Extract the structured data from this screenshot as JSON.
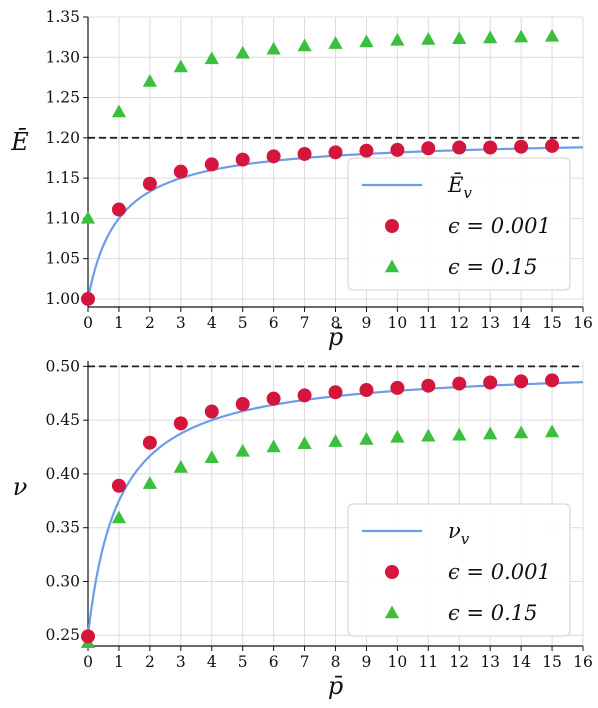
{
  "chart_data": [
    {
      "type": "scatter",
      "ylabel": "Ē",
      "xlabel": "p̄",
      "xlim": [
        0,
        16
      ],
      "ylim": [
        0.99,
        1.35
      ],
      "xticks": [
        "0",
        "1",
        "2",
        "3",
        "4",
        "5",
        "6",
        "7",
        "8",
        "9",
        "10",
        "11",
        "12",
        "13",
        "14",
        "15",
        "16"
      ],
      "yticks": [
        "1.00",
        "1.05",
        "1.10",
        "1.15",
        "1.20",
        "1.25",
        "1.30",
        "1.35"
      ],
      "grid": true,
      "legend_position": "lower-right",
      "reference_line": {
        "y": 1.2,
        "style": "dashed"
      },
      "curve": {
        "name": "Ē",
        "subscript": "v",
        "color": "#6f9be8",
        "formula": "1.2 - 0.2/(1+p)"
      },
      "series": [
        {
          "name": "ϵ = 0.001",
          "marker": "circle",
          "color": "#d4163c",
          "x": [
            0,
            1,
            2,
            3,
            4,
            5,
            6,
            7,
            8,
            9,
            10,
            11,
            12,
            13,
            14,
            15
          ],
          "y": [
            1.0,
            1.111,
            1.143,
            1.158,
            1.167,
            1.173,
            1.177,
            1.18,
            1.182,
            1.184,
            1.185,
            1.187,
            1.188,
            1.188,
            1.189,
            1.19
          ]
        },
        {
          "name": "ϵ = 0.15",
          "marker": "triangle",
          "color": "#3cbf3c",
          "x": [
            0,
            1,
            2,
            3,
            4,
            5,
            6,
            7,
            8,
            9,
            10,
            11,
            12,
            13,
            14,
            15
          ],
          "y": [
            1.1,
            1.232,
            1.27,
            1.288,
            1.298,
            1.305,
            1.31,
            1.314,
            1.317,
            1.319,
            1.321,
            1.322,
            1.323,
            1.324,
            1.325,
            1.326
          ]
        }
      ]
    },
    {
      "type": "scatter",
      "ylabel": "ν",
      "xlabel": "p̄",
      "xlim": [
        0,
        16
      ],
      "ylim": [
        0.24,
        0.505
      ],
      "xticks": [
        "0",
        "1",
        "2",
        "3",
        "4",
        "5",
        "6",
        "7",
        "8",
        "9",
        "10",
        "11",
        "12",
        "13",
        "14",
        "15",
        "16"
      ],
      "yticks": [
        "0.25",
        "0.30",
        "0.35",
        "0.40",
        "0.45",
        "0.50"
      ],
      "grid": true,
      "legend_position": "lower-right",
      "reference_line": {
        "y": 0.5,
        "style": "dashed"
      },
      "curve": {
        "name": "ν",
        "subscript": "v",
        "color": "#6f9be8",
        "formula": "0.5 - 0.25/(1+p)"
      },
      "series": [
        {
          "name": "ϵ = 0.001",
          "marker": "circle",
          "color": "#d4163c",
          "x": [
            0,
            1,
            2,
            3,
            4,
            5,
            6,
            7,
            8,
            9,
            10,
            11,
            12,
            13,
            14,
            15
          ],
          "y": [
            0.249,
            0.389,
            0.429,
            0.447,
            0.458,
            0.465,
            0.47,
            0.473,
            0.476,
            0.478,
            0.48,
            0.482,
            0.484,
            0.485,
            0.486,
            0.487
          ]
        },
        {
          "name": "ϵ = 0.15",
          "marker": "triangle",
          "color": "#3cbf3c",
          "x": [
            0,
            1,
            2,
            3,
            4,
            5,
            6,
            7,
            8,
            9,
            10,
            11,
            12,
            13,
            14,
            15
          ],
          "y": [
            0.243,
            0.359,
            0.391,
            0.406,
            0.415,
            0.421,
            0.425,
            0.428,
            0.43,
            0.432,
            0.434,
            0.435,
            0.436,
            0.437,
            0.438,
            0.439
          ]
        }
      ]
    }
  ]
}
